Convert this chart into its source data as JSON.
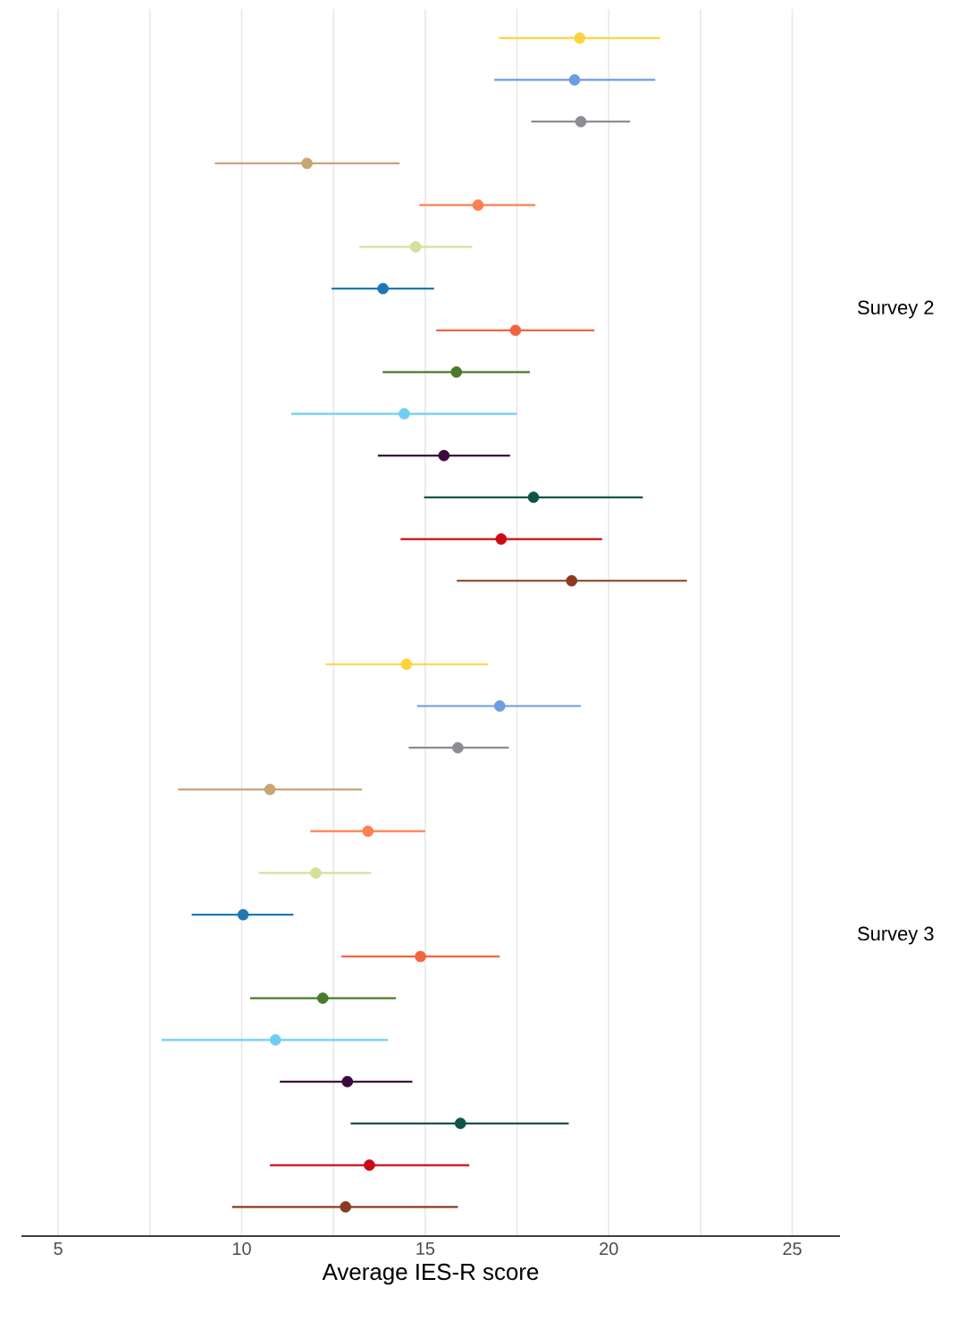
{
  "chart_data": {
    "type": "scatter",
    "orientation": "horizontal",
    "xlabel": "Average IES-R score",
    "marker": "circle",
    "grid": "x",
    "categories": [
      null,
      null,
      null,
      null,
      null,
      null,
      null,
      null,
      null,
      null,
      null,
      null,
      null,
      null,
      null,
      null,
      null,
      null,
      null,
      null,
      null,
      null,
      null,
      null,
      null,
      null,
      null,
      null,
      null
    ],
    "xlim": [
      4,
      26.3
    ],
    "xticks": [
      5,
      {
        "value": 7.5,
        "label": null
      },
      10,
      {
        "value": 12.5,
        "label": null
      },
      15,
      {
        "value": 17.5,
        "label": null
      },
      20,
      {
        "value": 22.5,
        "label": null
      },
      25
    ],
    "series": [
      {
        "name": "Survey 2",
        "values": [
          19.21,
          19.07,
          19.24,
          11.78,
          16.44,
          14.74,
          13.85,
          17.46,
          15.85,
          14.43,
          15.51,
          17.95,
          17.07,
          18.99,
          null,
          null,
          null,
          null,
          null,
          null,
          null,
          null,
          null,
          null,
          null,
          null,
          null,
          null,
          null
        ],
        "errors": [
          [
            17.01,
            21.4
          ],
          [
            16.88,
            21.27
          ],
          [
            17.89,
            20.58
          ],
          [
            9.27,
            14.3
          ],
          [
            14.84,
            18.0
          ],
          [
            13.21,
            16.28
          ],
          [
            12.45,
            15.24
          ],
          [
            15.3,
            19.61
          ],
          [
            13.84,
            17.85
          ],
          [
            11.35,
            17.5
          ],
          [
            13.71,
            17.31
          ],
          [
            14.97,
            20.93
          ],
          [
            14.33,
            19.82
          ],
          [
            15.86,
            22.13
          ],
          null,
          null,
          null,
          null,
          null,
          null,
          null,
          null,
          null,
          null,
          null,
          null,
          null,
          null,
          null
        ],
        "colors": [
          "#fdd33f",
          "#6f9be0",
          "#8a8d91",
          "#c8a574",
          "#ff7f50",
          "#d4e09b",
          "#1f78b4",
          "#f26440",
          "#4a7a2c",
          "#6fcdf5",
          "#3b0a3a",
          "#0f5449",
          "#cc0a14",
          "#8b3a22",
          null,
          null,
          null,
          null,
          null,
          null,
          null,
          null,
          null,
          null,
          null,
          null,
          null,
          null,
          null
        ]
      },
      {
        "name": "Survey 3",
        "values": [
          null,
          null,
          null,
          null,
          null,
          null,
          null,
          null,
          null,
          null,
          null,
          null,
          null,
          null,
          null,
          14.49,
          17.03,
          15.89,
          10.77,
          13.44,
          12.02,
          10.04,
          14.87,
          12.21,
          10.92,
          12.88,
          15.96,
          13.48,
          12.83
        ],
        "errors": [
          null,
          null,
          null,
          null,
          null,
          null,
          null,
          null,
          null,
          null,
          null,
          null,
          null,
          null,
          null,
          [
            12.29,
            16.72
          ],
          [
            14.78,
            19.24
          ],
          [
            14.55,
            17.28
          ],
          [
            8.27,
            13.28
          ],
          [
            11.87,
            15.0
          ],
          [
            10.47,
            13.53
          ],
          [
            8.64,
            11.41
          ],
          [
            12.72,
            17.03
          ],
          [
            10.23,
            14.2
          ],
          [
            7.82,
            13.98
          ],
          [
            11.04,
            14.65
          ],
          [
            12.97,
            18.91
          ],
          [
            10.77,
            16.2
          ],
          [
            9.74,
            15.89
          ]
        ],
        "colors": [
          null,
          null,
          null,
          null,
          null,
          null,
          null,
          null,
          null,
          null,
          null,
          null,
          null,
          null,
          null,
          "#fdd33f",
          "#6f9be0",
          "#8a8d91",
          "#c8a574",
          "#ff7f50",
          "#d4e09b",
          "#1f78b4",
          "#f26440",
          "#4a7a2c",
          "#6fcdf5",
          "#3b0a3a",
          "#0f5449",
          "#cc0a14",
          "#8b3a22"
        ]
      }
    ]
  }
}
